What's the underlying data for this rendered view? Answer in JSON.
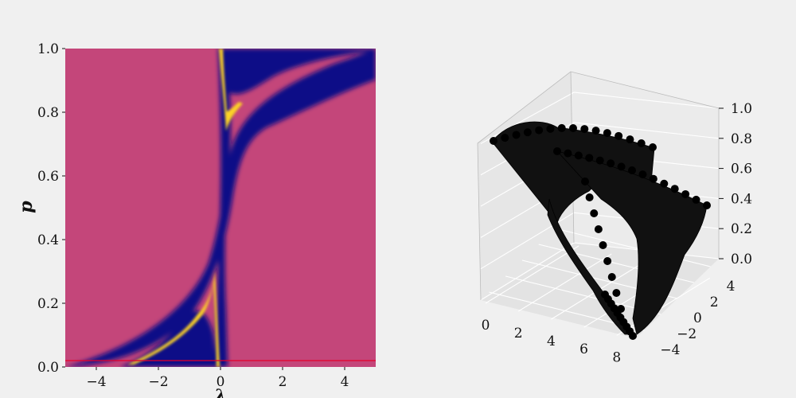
{
  "chart_data": [
    {
      "type": "heatmap",
      "title": "",
      "xlabel": "λ",
      "ylabel": "p",
      "xlim": [
        -5,
        5
      ],
      "ylim": [
        0,
        1
      ],
      "xticks": [
        -4,
        -2,
        0,
        2,
        4
      ],
      "yticks": [
        0.0,
        0.2,
        0.4,
        0.6,
        0.8,
        1.0
      ],
      "xtick_labels": [
        "−4",
        "−2",
        "0",
        "2",
        "4"
      ],
      "ytick_labels": [
        "0.0",
        "0.2",
        "0.4",
        "0.6",
        "0.8",
        "1.0"
      ],
      "colormap": "plasma",
      "colors": {
        "background": "#c4467a",
        "dark": "#0d0887",
        "bright": "#fcd225",
        "hline": "#e8002a"
      },
      "hline_y": 0.02,
      "grid": false
    },
    {
      "type": "scatter",
      "projection": "3d",
      "title": "",
      "xlabel": "",
      "ylabel": "",
      "zlabel": "",
      "xlim": [
        0,
        9
      ],
      "ylim": [
        -5,
        5
      ],
      "zlim": [
        0,
        1
      ],
      "xticks": [
        0,
        2,
        4,
        6,
        8
      ],
      "yticks": [
        -4,
        -2,
        0,
        2,
        4
      ],
      "zticks": [
        0.0,
        0.2,
        0.4,
        0.6,
        0.8,
        1.0
      ],
      "xtick_labels": [
        "0",
        "2",
        "4",
        "6",
        "8"
      ],
      "ytick_labels": [
        "−4",
        "−2",
        "0",
        "2",
        "4"
      ],
      "ztick_labels": [
        "0.0",
        "0.2",
        "0.4",
        "0.6",
        "0.8",
        "1.0"
      ],
      "marker_color": "#000000",
      "grid": true
    }
  ]
}
